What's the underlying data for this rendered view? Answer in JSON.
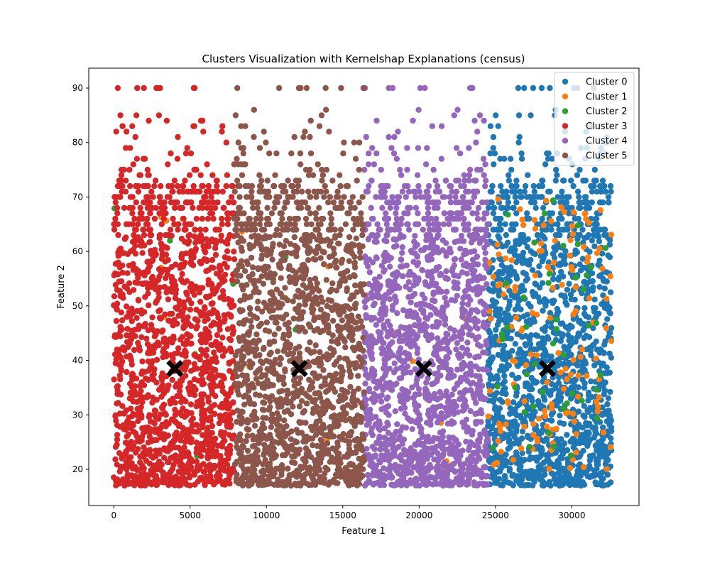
{
  "chart_data": {
    "type": "scatter",
    "title": "Clusters Visualization with Kernelshap Explanations (census)",
    "xlabel": "Feature 1",
    "ylabel": "Feature 2",
    "xlim": [
      -1640,
      34400
    ],
    "ylim": [
      13.35,
      93.65
    ],
    "xticks": [
      0,
      5000,
      10000,
      15000,
      20000,
      25000,
      30000
    ],
    "yticks": [
      20,
      30,
      40,
      50,
      60,
      70,
      80,
      90
    ],
    "grid": false,
    "legend_position": "top-right",
    "series": [
      {
        "name": "Cluster 0",
        "color": "#1f77b4",
        "x_range": [
          24500,
          32600
        ],
        "y_range": [
          17,
          90
        ]
      },
      {
        "name": "Cluster 1",
        "color": "#ff7f0e",
        "x_range": [
          0,
          32600
        ],
        "y_range": [
          17,
          90
        ]
      },
      {
        "name": "Cluster 2",
        "color": "#2ca02c",
        "x_range": [
          0,
          32600
        ],
        "y_range": [
          17,
          90
        ]
      },
      {
        "name": "Cluster 3",
        "color": "#d62728",
        "x_range": [
          0,
          7900
        ],
        "y_range": [
          17,
          90
        ]
      },
      {
        "name": "Cluster 4",
        "color": "#9467bd",
        "x_range": [
          16400,
          24500
        ],
        "y_range": [
          17,
          90
        ]
      },
      {
        "name": "Cluster 5",
        "color": "#8c564b",
        "x_range": [
          7900,
          16400
        ],
        "y_range": [
          17,
          90
        ]
      }
    ],
    "centroids": {
      "marker": "X",
      "color": "#000000",
      "points": [
        {
          "x": 4000,
          "y": 38.5
        },
        {
          "x": 12150,
          "y": 38.5
        },
        {
          "x": 20300,
          "y": 38.5
        },
        {
          "x": 28400,
          "y": 38.5
        }
      ]
    }
  }
}
